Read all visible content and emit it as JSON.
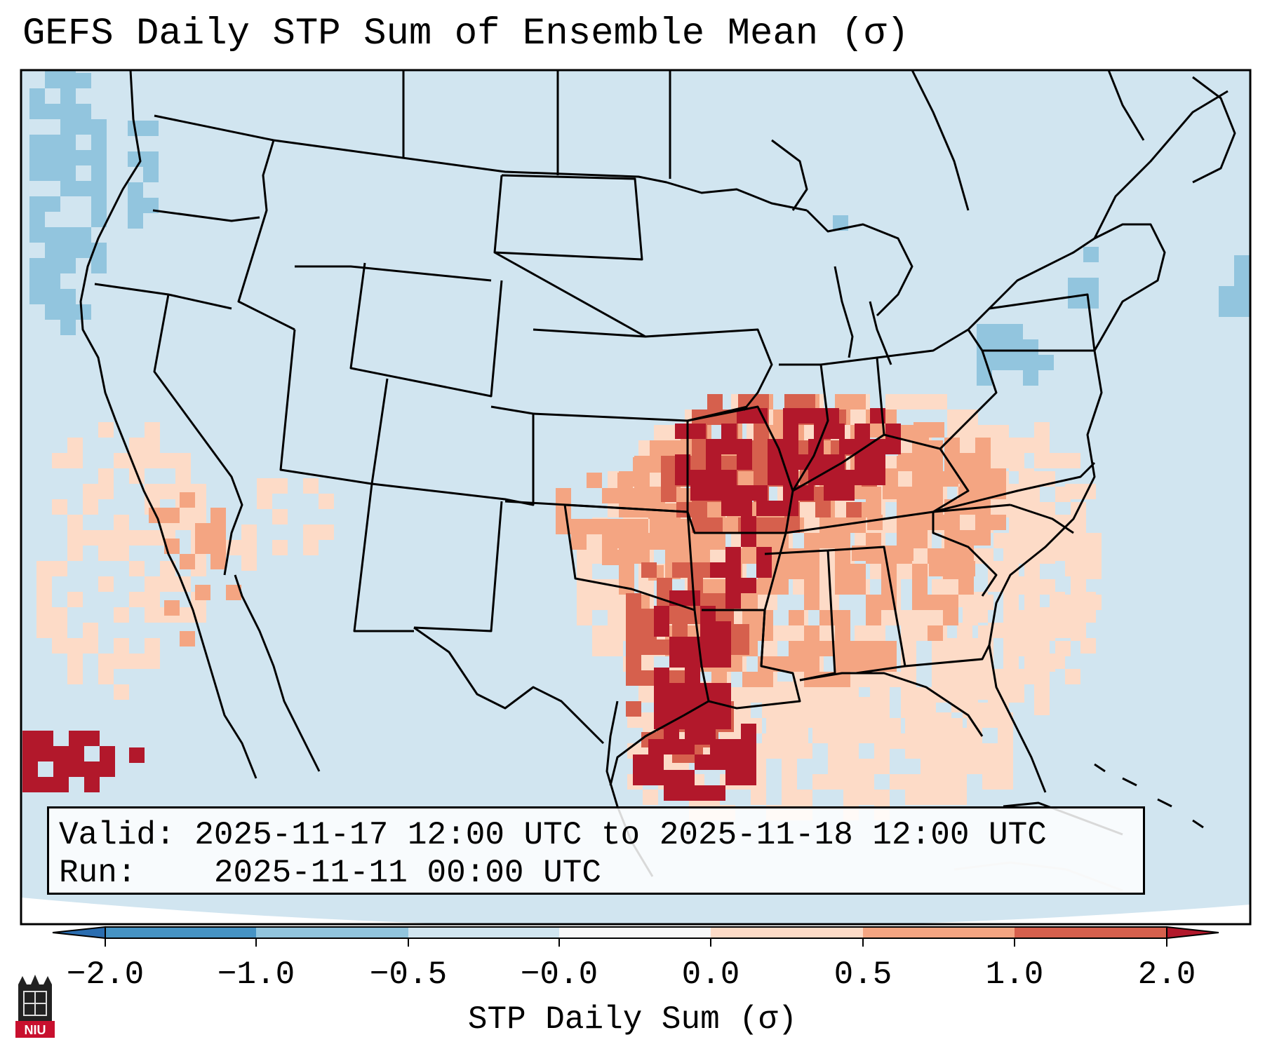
{
  "title": "GEFS Daily STP Sum of Ensemble Mean (σ)",
  "info": {
    "valid_label": "Valid:",
    "valid_text": "2025-11-17 12:00 UTC to 2025-11-18 12:00 UTC",
    "run_label": "Run:",
    "run_text": "2025-11-11 00:00 UTC"
  },
  "colorbar": {
    "label": "STP Daily Sum (σ)",
    "ticks": [
      "−2.0",
      "−1.0",
      "−0.5",
      "−0.0",
      "0.0",
      "0.5",
      "1.0",
      "2.0"
    ],
    "bins": [
      {
        "range": "< -2.0",
        "color": "#2a6db0"
      },
      {
        "range": "-2.0 to -1.0",
        "color": "#4693c4"
      },
      {
        "range": "-1.0 to -0.5",
        "color": "#92c5de"
      },
      {
        "range": "-0.5 to -0.0",
        "color": "#d1e5f0"
      },
      {
        "range": "-0.0 to 0.0",
        "color": "#f7f7f7"
      },
      {
        "range": "0.0 to 0.5",
        "color": "#fddbc7"
      },
      {
        "range": "0.5 to 1.0",
        "color": "#f4a582"
      },
      {
        "range": "1.0 to 2.0",
        "color": "#d6604d"
      },
      {
        "range": "> 2.0",
        "color": "#b2182b"
      }
    ]
  },
  "field_colors": {
    "background": "#d1e5f0",
    "negative_moderate": "#92c5de",
    "positive_light": "#fddbc7",
    "positive_moderate": "#f4a582",
    "positive_high": "#d6604d",
    "positive_extreme": "#b2182b"
  },
  "logo": {
    "text": "NIU",
    "icon": "niu-tower-icon"
  }
}
